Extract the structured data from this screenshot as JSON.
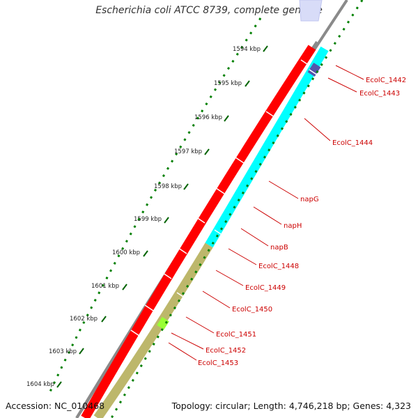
{
  "title": "Escherichia coli ATCC 8739, complete genome",
  "footer": {
    "accession": "Accession: NC_010468",
    "summary": "Topology: circular; Length: 4,746,218 bp; Genes: 4,323"
  },
  "ticks": [
    "1594 kbp",
    "1595 kbp",
    "1596 kbp",
    "1597 kbp",
    "1598 kbp",
    "1599 kbp",
    "1600 kbp",
    "1601 kbp",
    "1602 kbp",
    "1603 kbp",
    "1604 kbp"
  ],
  "gene_labels": [
    "EcolC_1442",
    "EcolC_1443",
    "EcolC_1444",
    "napG",
    "napH",
    "napB",
    "EcolC_1448",
    "EcolC_1449",
    "EcolC_1450",
    "EcolC_1451",
    "EcolC_1452",
    "EcolC_1453"
  ],
  "colors": {
    "backbone": "#8a8a8a",
    "forward_cds": "#ff0000",
    "reverse_cds_cyan": "#00ffff",
    "reverse_cds_khaki": "#bdb76b",
    "highlight_blue": "#5555aa",
    "highlight_green": "#99ff33",
    "gc_dots": "#008000",
    "label_lines": "#cc0000"
  }
}
